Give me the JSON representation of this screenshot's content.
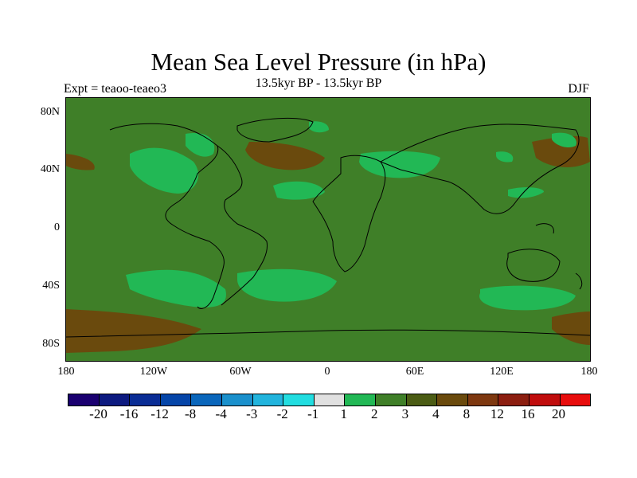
{
  "title": "Mean Sea Level Pressure (in hPa)",
  "subtitle": "13.5kyr BP - 13.5kyr BP",
  "left_note": "Expt = teaoo-teaeo3",
  "right_note": "DJF",
  "axes": {
    "y_ticks": [
      "80N",
      "40N",
      "0",
      "40S",
      "80S"
    ],
    "x_ticks": [
      "180",
      "120W",
      "60W",
      "0",
      "60E",
      "120E",
      "180"
    ]
  },
  "colorbar": {
    "colors": [
      "#1a0070",
      "#0d1a80",
      "#0a2d95",
      "#0545a8",
      "#0a66bb",
      "#1a90cc",
      "#22b4dd",
      "#22dde0",
      "#e0e0e0",
      "#22b855",
      "#3f7f28",
      "#4b5c14",
      "#6a4a0d",
      "#7e3810",
      "#8c1e10",
      "#c00d0d",
      "#e80d0d"
    ],
    "labels": [
      "-20",
      "-16",
      "-12",
      "-8",
      "-4",
      "-3",
      "-2",
      "-1",
      "1",
      "2",
      "3",
      "4",
      "8",
      "12",
      "16",
      "20"
    ]
  },
  "map_colors": {
    "background": "#3f7f28",
    "positive_low": "#22b855",
    "brown": "#6a4a0d",
    "coast": "#000000"
  }
}
